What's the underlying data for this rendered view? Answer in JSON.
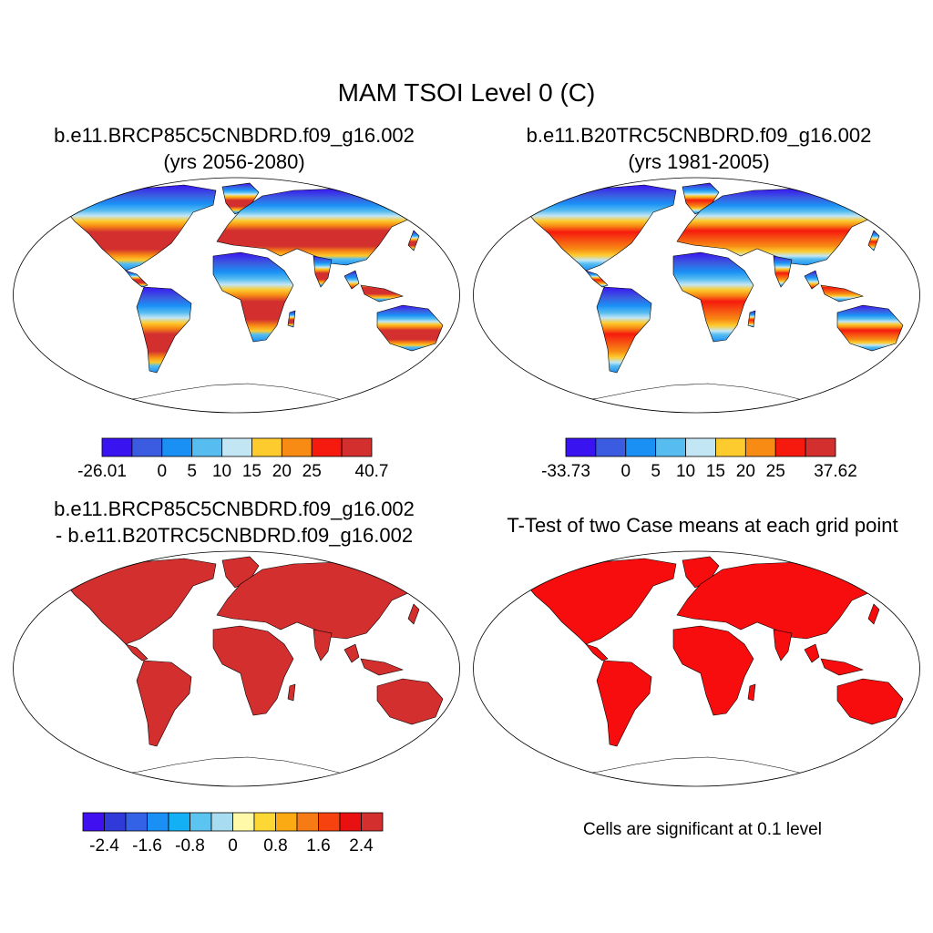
{
  "title": "MAM TSOI Level 0 (C)",
  "panels": [
    {
      "title_line1": "b.e11.BRCP85C5CNBDRD.f09_g16.002",
      "title_line2": "(yrs 2056-2080)",
      "land_color": "#d42d2d",
      "colorbar": {
        "colors": [
          "#3a14f0",
          "#3b5ce0",
          "#1a90f5",
          "#57bdf0",
          "#c3e6f5",
          "#fdcb2e",
          "#f78b14",
          "#f61a0e",
          "#d32f2f"
        ],
        "labels": [
          "-26.01",
          "0",
          "5",
          "10",
          "15",
          "20",
          "25",
          "40.7"
        ],
        "label_positions": [
          0,
          2,
          3,
          4,
          5,
          6,
          7,
          9
        ]
      }
    },
    {
      "title_line1": "b.e11.B20TRC5CNBDRD.f09_g16.002",
      "title_line2": "(yrs 1981-2005)",
      "land_color": "#f0400f",
      "colorbar": {
        "colors": [
          "#3a14f0",
          "#3b5ce0",
          "#1a90f5",
          "#57bdf0",
          "#c3e6f5",
          "#fdcb2e",
          "#f78b14",
          "#f61a0e",
          "#d32f2f"
        ],
        "labels": [
          "-33.73",
          "0",
          "5",
          "10",
          "15",
          "20",
          "25",
          "37.62"
        ],
        "label_positions": [
          0,
          2,
          3,
          4,
          5,
          6,
          7,
          9
        ]
      }
    },
    {
      "title_line1": "b.e11.BRCP85C5CNBDRD.f09_g16.002",
      "title_line2": "- b.e11.B20TRC5CNBDRD.f09_g16.002",
      "land_color": "#d32f2f",
      "colorbar": {
        "colors": [
          "#4010f0",
          "#2f3ad8",
          "#3462e6",
          "#1a8ff5",
          "#14b0f5",
          "#5cc4f0",
          "#a8dcf0",
          "#fff9a8",
          "#fdd835",
          "#fbaa14",
          "#f77b14",
          "#f6420e",
          "#e81010",
          "#d32f2f"
        ],
        "labels": [
          "-2.4",
          "-1.6",
          "-0.8",
          "0",
          "0.8",
          "1.6",
          "2.4"
        ],
        "label_positions": [
          1,
          3,
          5,
          7,
          9,
          11,
          13
        ]
      }
    },
    {
      "title_line1": "T-Test of two Case means at each grid point",
      "note": "Cells are significant at 0.1 level",
      "land_color": "#f70d0d"
    }
  ]
}
